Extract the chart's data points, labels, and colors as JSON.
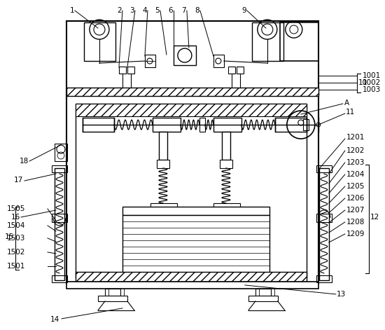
{
  "bg": "#ffffff",
  "lc": "#000000",
  "figsize": [
    5.5,
    4.71
  ],
  "dpi": 100,
  "label_color": "#5a5a3c"
}
